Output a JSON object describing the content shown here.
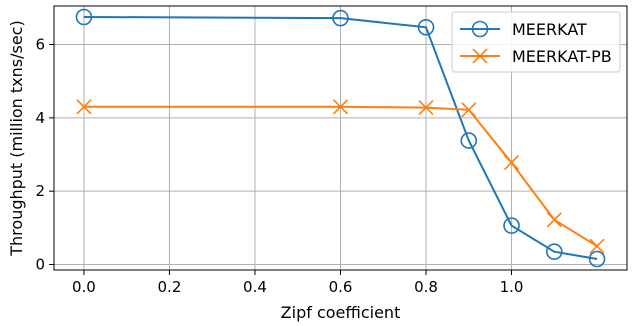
{
  "chart_data": {
    "type": "line",
    "xlabel": "Zipf coefficient",
    "ylabel": "Throughput (million txns/sec)",
    "xlim": [
      -0.07,
      1.27
    ],
    "ylim": [
      -0.15,
      7.05
    ],
    "xticks": [
      0.0,
      0.2,
      0.4,
      0.6,
      0.8,
      1.0
    ],
    "xtick_labels": [
      "0.0",
      "0.2",
      "0.4",
      "0.6",
      "0.8",
      "1.0"
    ],
    "yticks": [
      0,
      2,
      4,
      6
    ],
    "ytick_labels": [
      "0",
      "2",
      "4",
      "6"
    ],
    "grid": true,
    "legend_position": "top-right",
    "series": [
      {
        "name": "MEERKAT",
        "color": "#1f77b4",
        "marker": "circle",
        "x": [
          0.0,
          0.6,
          0.8,
          0.9,
          1.0,
          1.1,
          1.2
        ],
        "y": [
          6.75,
          6.72,
          6.47,
          3.38,
          1.06,
          0.35,
          0.15
        ]
      },
      {
        "name": "MEERKAT-PB",
        "color": "#ff7f0e",
        "marker": "x",
        "x": [
          0.0,
          0.6,
          0.8,
          0.9,
          1.0,
          1.1,
          1.2
        ],
        "y": [
          4.3,
          4.3,
          4.28,
          4.22,
          2.78,
          1.22,
          0.5
        ]
      }
    ]
  }
}
